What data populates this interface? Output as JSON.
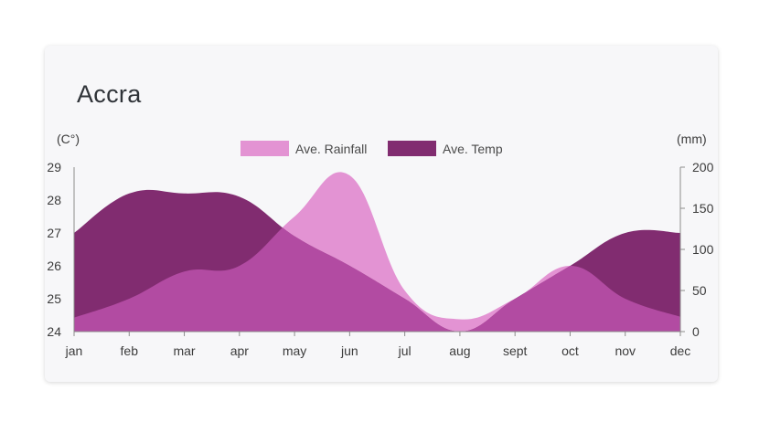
{
  "title": "Accra",
  "colors": {
    "rainfall": "#e393d3",
    "temp": "#812c70",
    "overlap": "#b24ba2",
    "axis": "#8c8c8c",
    "card": "#f7f7f9"
  },
  "chart_data": {
    "type": "area",
    "title": "Accra",
    "categories": [
      "jan",
      "feb",
      "mar",
      "apr",
      "may",
      "jun",
      "jul",
      "aug",
      "sept",
      "oct",
      "nov",
      "dec"
    ],
    "left_axis": {
      "unit_label": "(C°)",
      "ylim": [
        24,
        29
      ],
      "ticks": [
        24,
        25,
        26,
        27,
        28,
        29
      ]
    },
    "right_axis": {
      "unit_label": "(mm)",
      "ylim": [
        0,
        200
      ],
      "ticks": [
        0,
        50,
        100,
        150,
        200
      ]
    },
    "series": [
      {
        "name": "Ave. Rainfall",
        "axis": "right",
        "values": [
          17,
          40,
          73,
          80,
          140,
          190,
          50,
          15,
          40,
          80,
          40,
          18
        ]
      },
      {
        "name": "Ave. Temp",
        "axis": "left",
        "values": [
          27.0,
          28.2,
          28.2,
          28.1,
          26.9,
          26.0,
          25.0,
          24.0,
          25.0,
          26.0,
          27.0,
          27.0
        ]
      }
    ],
    "legend": "top-center",
    "grid": false
  }
}
